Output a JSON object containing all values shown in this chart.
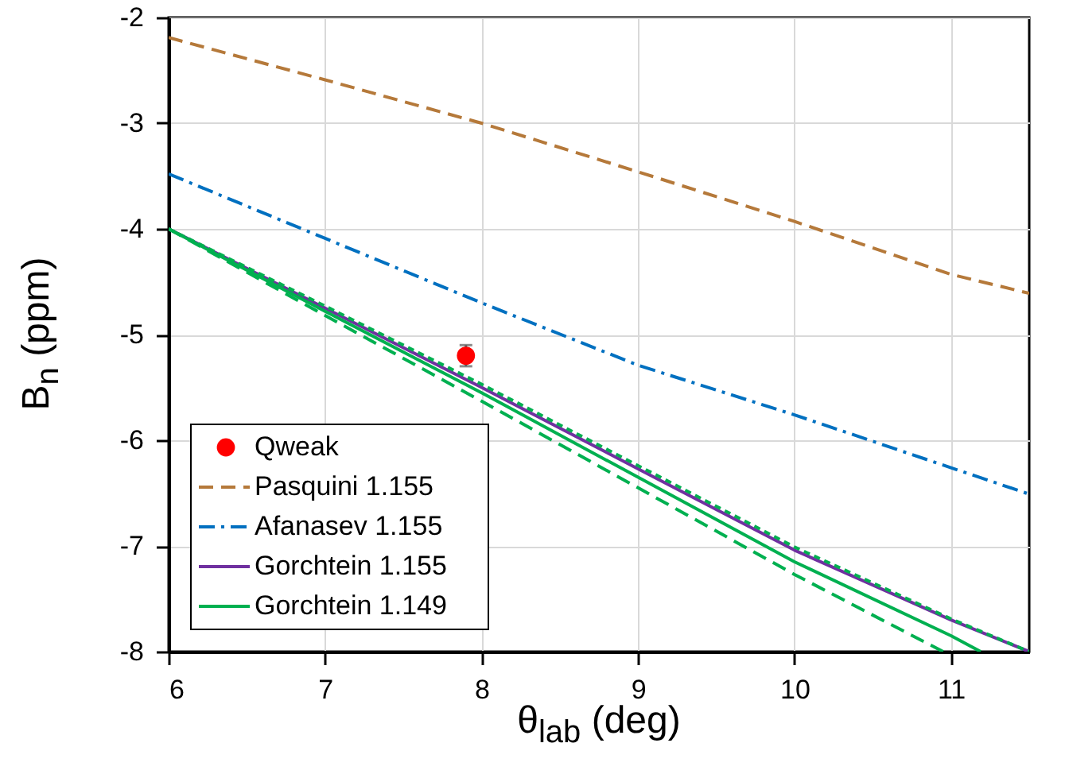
{
  "chart_data": {
    "type": "line",
    "xlabel": "θ$_{lab}$ (deg)",
    "ylabel": "B$_{n}$ (ppm)",
    "xlim": [
      6,
      11.5
    ],
    "xticks": [
      6,
      7,
      8,
      9,
      10,
      11
    ],
    "ylim": [
      -8,
      -2
    ],
    "yticks": [
      -8,
      -7,
      -6,
      -5,
      -4,
      -3,
      -2
    ],
    "grid": true,
    "legend": "bottom left",
    "series": [
      {
        "name": "Qweak",
        "type": "scatter",
        "marker": "circle",
        "color": "#ff0000",
        "x": [
          7.9
        ],
        "values": [
          -5.2
        ],
        "errors": [
          0.1
        ]
      },
      {
        "name": "Pasquini 1.155",
        "color": "#b5793a",
        "line_style": "dashed",
        "x": [
          6,
          7,
          8,
          9,
          10,
          11,
          11.5
        ],
        "values": [
          -2.19,
          -2.59,
          -3.0,
          -3.46,
          -3.93,
          -4.43,
          -4.61
        ]
      },
      {
        "name": "Afanasev 1.155",
        "color": "#0070c0",
        "line_style": "dashdot",
        "x": [
          6,
          7,
          8,
          9,
          10,
          11,
          11.5
        ],
        "values": [
          -3.48,
          -4.09,
          -4.7,
          -5.29,
          -5.76,
          -6.26,
          -6.51
        ]
      },
      {
        "name": "Gorchtein 1.155",
        "color": "#7030a0",
        "line_style": "solid",
        "x": [
          6,
          7,
          8,
          9,
          10,
          11,
          11.5
        ],
        "values": [
          -4,
          -4.75,
          -5.5,
          -6.27,
          -7.04,
          -7.7,
          -8
        ]
      },
      {
        "name": "Gorchtein 1.149",
        "color": "#00b050",
        "line_style": "solid",
        "x": [
          6,
          7,
          8,
          9,
          10,
          11,
          11.19
        ],
        "values": [
          -4,
          -4.78,
          -5.55,
          -6.35,
          -7.15,
          -7.85,
          -8
        ]
      },
      {
        "color": "#00b050",
        "line_style": "dotted",
        "x": [
          6,
          7,
          8,
          9,
          10,
          11,
          11.5
        ],
        "values": [
          -4,
          -4.73,
          -5.47,
          -6.24,
          -7.01,
          -7.69,
          -8
        ]
      },
      {
        "color": "#00b050",
        "line_style": "dashed",
        "x": [
          6,
          7,
          8,
          9,
          10,
          10.95
        ],
        "values": [
          -4,
          -4.82,
          -5.63,
          -6.45,
          -7.27,
          -8
        ]
      }
    ]
  }
}
